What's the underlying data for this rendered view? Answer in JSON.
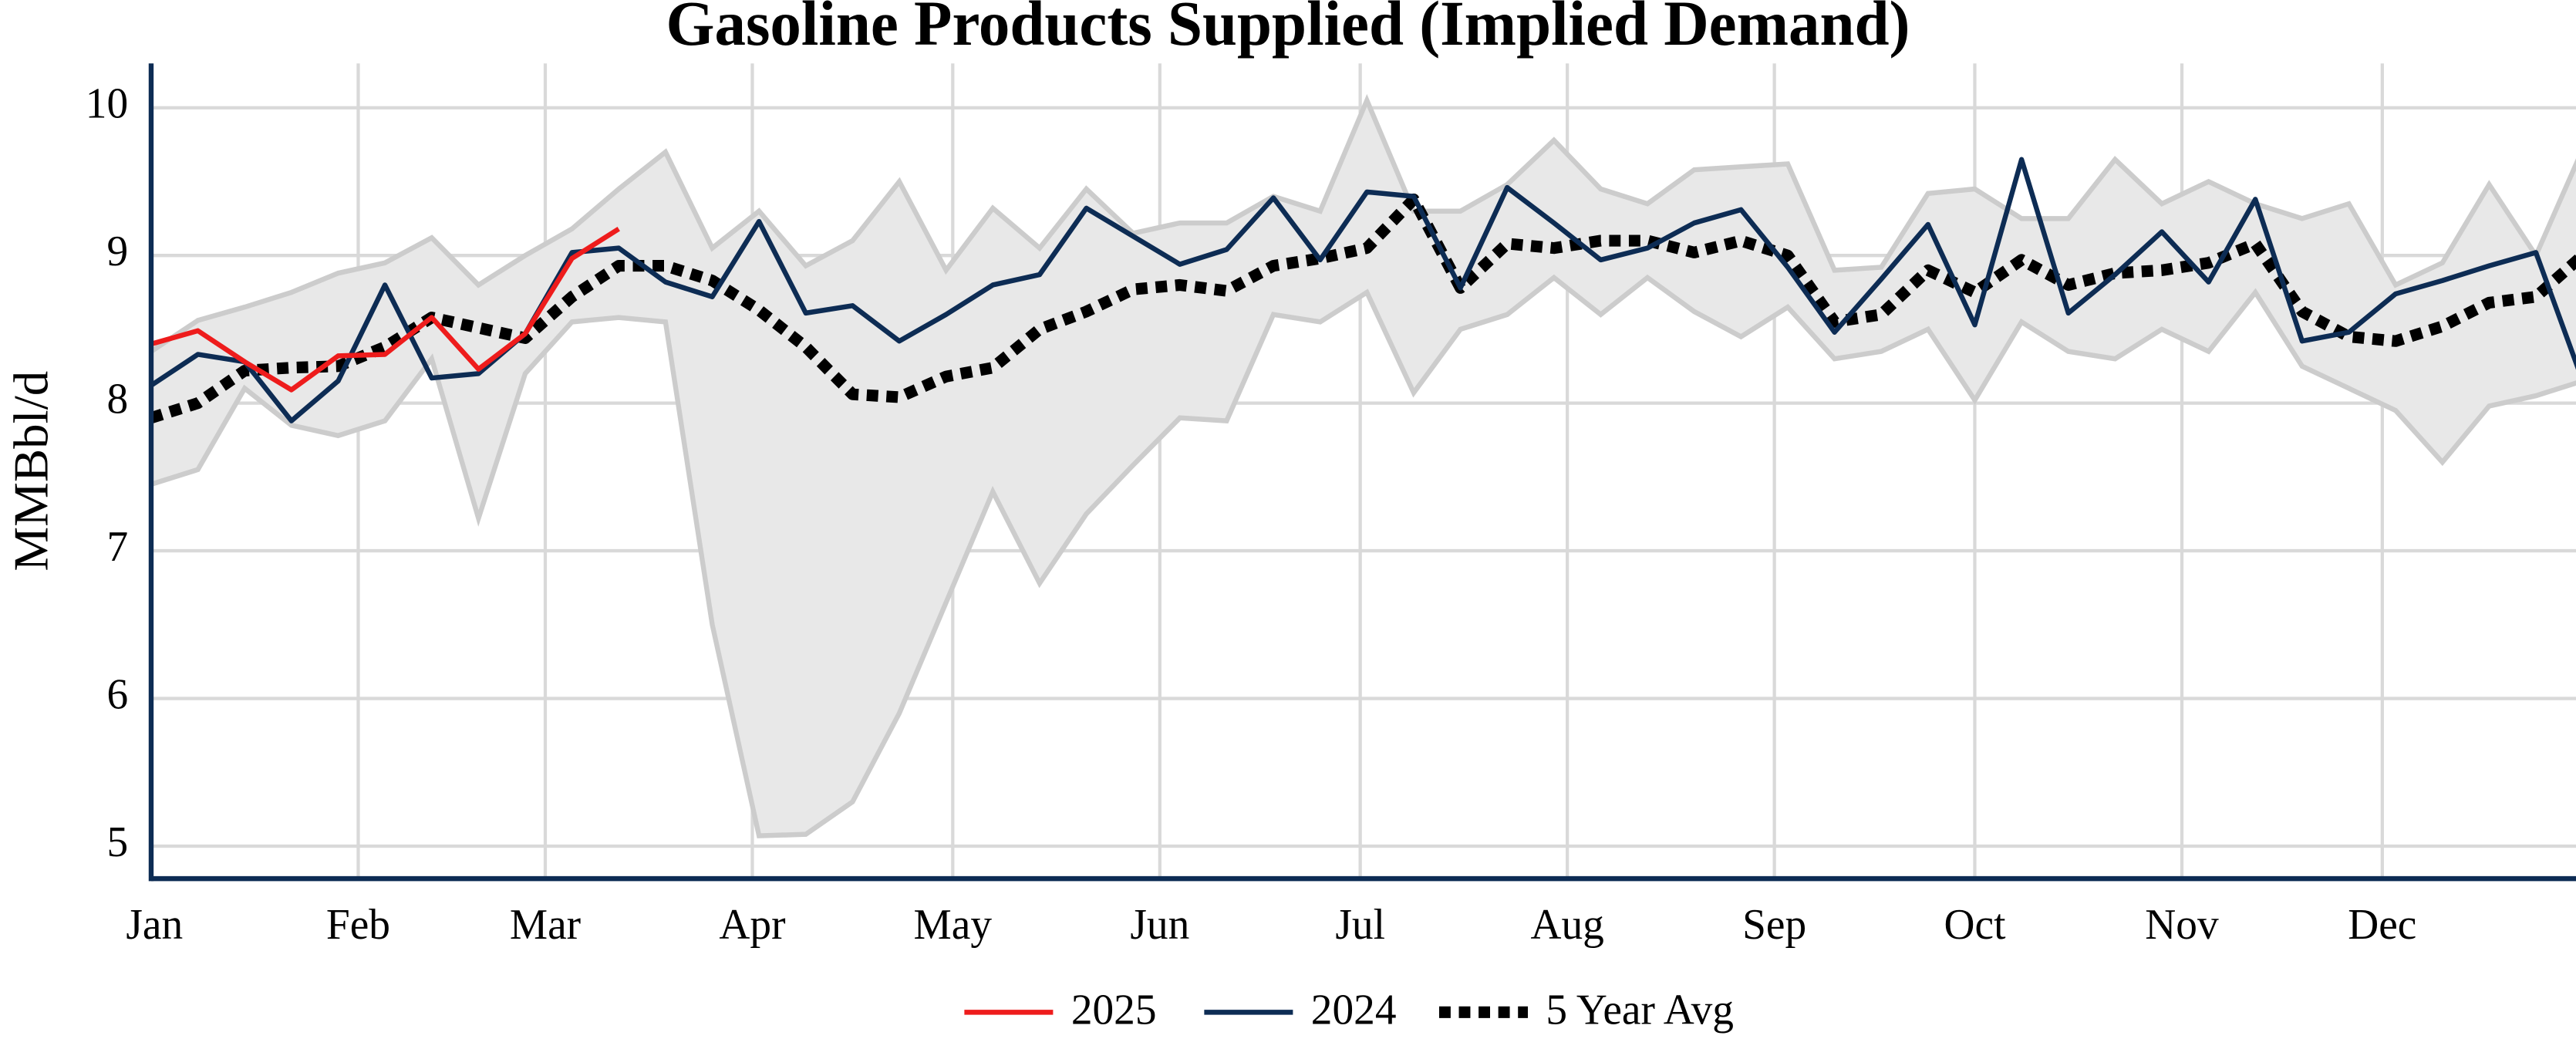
{
  "chart_data": {
    "type": "line",
    "title": "Gasoline Products Supplied (Implied Demand)",
    "y_label": "MMBbl/d",
    "x": [
      1,
      8,
      15,
      22,
      29,
      36,
      43,
      50,
      57,
      64,
      71,
      78,
      85,
      92,
      99,
      106,
      113,
      120,
      127,
      134,
      141,
      148,
      155,
      162,
      169,
      176,
      183,
      190,
      197,
      204,
      211,
      218,
      225,
      232,
      239,
      246,
      253,
      260,
      267,
      274,
      281,
      288,
      295,
      302,
      309,
      316,
      323,
      330,
      337,
      344,
      351,
      358,
      365
    ],
    "xlim": [
      1,
      364
    ],
    "xticks": [
      {
        "value": 1,
        "label": "Jan"
      },
      {
        "value": 32,
        "label": "Feb"
      },
      {
        "value": 60,
        "label": "Mar"
      },
      {
        "value": 91,
        "label": "Apr"
      },
      {
        "value": 121,
        "label": "May"
      },
      {
        "value": 152,
        "label": "Jun"
      },
      {
        "value": 182,
        "label": "Jul"
      },
      {
        "value": 213,
        "label": "Aug"
      },
      {
        "value": 244,
        "label": "Sep"
      },
      {
        "value": 274,
        "label": "Oct"
      },
      {
        "value": 305,
        "label": "Nov"
      },
      {
        "value": 335,
        "label": "Dec"
      }
    ],
    "ylim": [
      4.78,
      10.3
    ],
    "yticks": [
      5,
      6,
      7,
      8,
      9,
      10
    ],
    "grid": true,
    "band_color": "#e8e8e8",
    "band_edge_color": "#cccccc",
    "band_upper": [
      8.35,
      8.56,
      8.65,
      8.75,
      8.88,
      8.95,
      9.12,
      8.8,
      9.0,
      9.18,
      9.45,
      9.7,
      9.05,
      9.3,
      8.93,
      9.1,
      9.5,
      8.9,
      9.32,
      9.05,
      9.45,
      9.15,
      9.22,
      9.22,
      9.4,
      9.3,
      10.05,
      9.3,
      9.3,
      9.48,
      9.78,
      9.45,
      9.35,
      9.58,
      9.6,
      9.62,
      8.9,
      8.92,
      9.42,
      9.45,
      9.25,
      9.25,
      9.65,
      9.35,
      9.5,
      9.35,
      9.25,
      9.35,
      8.8,
      8.95,
      9.48,
      9.0,
      9.72
    ],
    "band_lower": [
      7.45,
      7.55,
      8.1,
      7.85,
      7.78,
      7.88,
      8.3,
      7.22,
      8.2,
      8.55,
      8.58,
      8.55,
      6.5,
      5.07,
      5.08,
      5.3,
      5.9,
      6.65,
      7.4,
      6.78,
      7.25,
      7.58,
      7.9,
      7.88,
      8.6,
      8.55,
      8.75,
      8.07,
      8.5,
      8.6,
      8.85,
      8.6,
      8.85,
      8.62,
      8.45,
      8.65,
      8.3,
      8.35,
      8.5,
      8.02,
      8.55,
      8.35,
      8.3,
      8.5,
      8.35,
      8.75,
      8.25,
      8.1,
      7.95,
      7.6,
      7.98,
      8.05,
      8.15
    ],
    "series": [
      {
        "name": "2025",
        "color": "#ee1c1c",
        "dash": "solid",
        "values": [
          8.4,
          8.49,
          8.28,
          8.09,
          8.32,
          8.33,
          8.58,
          8.23,
          8.47,
          8.98,
          9.18,
          null,
          null,
          null,
          null,
          null,
          null,
          null,
          null,
          null,
          null,
          null,
          null,
          null,
          null,
          null,
          null,
          null,
          null,
          null,
          null,
          null,
          null,
          null,
          null,
          null,
          null,
          null,
          null,
          null,
          null,
          null,
          null,
          null,
          null,
          null,
          null,
          null,
          null,
          null,
          null,
          null,
          null
        ]
      },
      {
        "name": "2024",
        "color": "#0d2c54",
        "dash": "solid",
        "values": [
          8.12,
          8.33,
          8.28,
          7.88,
          8.15,
          8.8,
          8.17,
          8.2,
          8.47,
          9.02,
          9.05,
          8.82,
          8.72,
          9.23,
          8.61,
          8.66,
          8.42,
          8.6,
          8.8,
          8.87,
          9.32,
          9.13,
          8.94,
          9.04,
          9.39,
          8.97,
          9.43,
          9.4,
          8.78,
          9.46,
          9.22,
          8.97,
          9.05,
          9.22,
          9.31,
          8.92,
          8.48,
          8.84,
          9.21,
          8.53,
          9.65,
          8.61,
          8.87,
          9.16,
          8.82,
          9.38,
          8.42,
          8.48,
          8.74,
          8.83,
          8.93,
          9.02,
          8.15
        ]
      },
      {
        "name": "5 Year Avg",
        "color": "#000000",
        "dash": "dot",
        "values": [
          7.9,
          8.0,
          8.22,
          8.24,
          8.25,
          8.38,
          8.58,
          8.51,
          8.44,
          8.72,
          8.93,
          8.93,
          8.83,
          8.63,
          8.38,
          8.06,
          8.04,
          8.18,
          8.24,
          8.5,
          8.62,
          8.77,
          8.8,
          8.76,
          8.93,
          8.98,
          9.05,
          9.38,
          8.78,
          9.08,
          9.05,
          9.1,
          9.1,
          9.02,
          9.1,
          9.0,
          8.55,
          8.6,
          8.9,
          8.75,
          8.97,
          8.8,
          8.88,
          8.9,
          8.95,
          9.08,
          8.62,
          8.45,
          8.42,
          8.52,
          8.68,
          8.72,
          9.0
        ]
      }
    ]
  }
}
